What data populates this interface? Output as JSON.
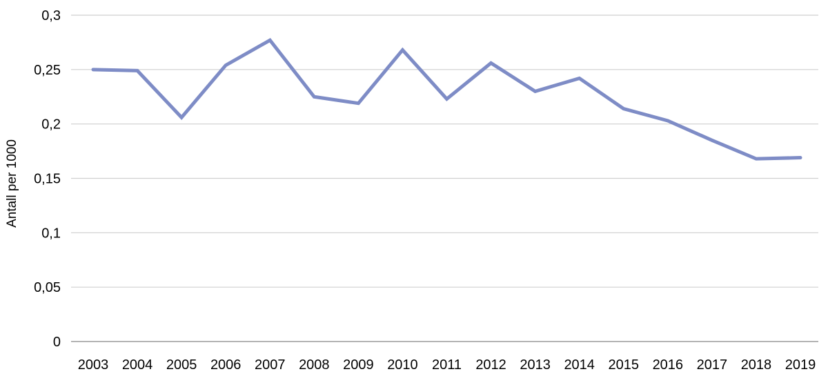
{
  "chart_data": {
    "type": "line",
    "title": "",
    "xlabel": "",
    "ylabel": "Antall per 1000",
    "categories": [
      "2003",
      "2004",
      "2005",
      "2006",
      "2007",
      "2008",
      "2009",
      "2010",
      "2011",
      "2012",
      "2013",
      "2014",
      "2015",
      "2016",
      "2017",
      "2018",
      "2019"
    ],
    "values": [
      0.25,
      0.249,
      0.206,
      0.254,
      0.277,
      0.225,
      0.219,
      0.268,
      0.223,
      0.256,
      0.23,
      0.242,
      0.214,
      0.203,
      0.185,
      0.168,
      0.169
    ],
    "ylim": [
      0,
      0.3
    ],
    "yticks": [
      0,
      0.05,
      0.1,
      0.15,
      0.2,
      0.25,
      0.3
    ],
    "ytick_labels": [
      "0",
      "0,05",
      "0,1",
      "0,15",
      "0,2",
      "0,25",
      "0,3"
    ],
    "grid": "horizontal",
    "legend": "none",
    "colors": {
      "line": "#7e8cc6",
      "gridline": "#cfcfcf",
      "baseline": "#9c9c9c",
      "text": "#000000"
    }
  }
}
